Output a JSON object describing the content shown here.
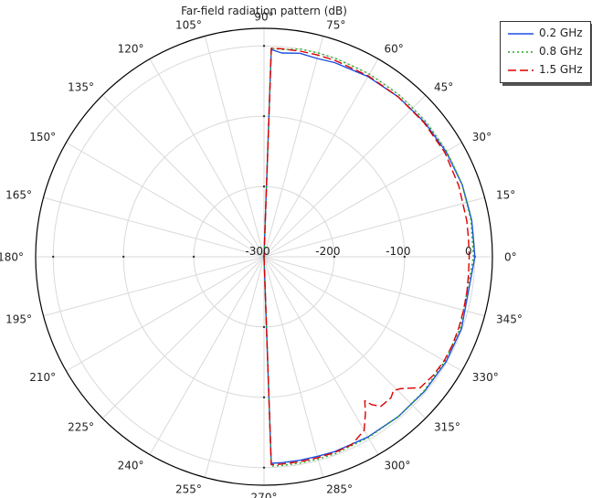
{
  "chart_data": {
    "type": "polar-line",
    "title": "Far-field radiation pattern (dB)",
    "angle_unit": "deg",
    "angle_ticks": [
      "0°",
      "15°",
      "30°",
      "45°",
      "60°",
      "75°",
      "90°",
      "105°",
      "120°",
      "135°",
      "150°",
      "165°",
      "180°",
      "195°",
      "210°",
      "225°",
      "240°",
      "255°",
      "270°",
      "285°",
      "300°",
      "315°",
      "330°",
      "345°"
    ],
    "radial_range": [
      -300,
      25
    ],
    "radial_ticks": [
      "-300",
      "-200",
      "-100",
      "0"
    ],
    "radial_tick_values": [
      -300,
      -200,
      -100,
      0
    ],
    "grid": true,
    "legend_position": "top-right",
    "series": [
      {
        "name": "0.2 GHz",
        "color": "#1f4fe0",
        "dash": "solid",
        "theta": [
          90,
          88,
          85,
          80,
          75,
          70,
          60,
          50,
          40,
          30,
          20,
          10,
          0,
          340,
          330,
          320,
          310,
          300,
          290,
          285,
          280,
          275,
          272,
          270
        ],
        "r": [
          -300,
          -5,
          -9,
          -6,
          -8,
          -6,
          -4,
          -3,
          -2,
          -1,
          0,
          0,
          0,
          -1,
          -1,
          -2,
          -3,
          -4,
          -5,
          -6,
          -6,
          -6,
          -6,
          -300
        ]
      },
      {
        "name": "0.8 GHz",
        "color": "#22aa22",
        "dash": "dotted",
        "theta": [
          90,
          88,
          85,
          80,
          75,
          70,
          60,
          50,
          40,
          30,
          20,
          10,
          0,
          340,
          330,
          320,
          310,
          300,
          290,
          285,
          280,
          275,
          272,
          270
        ],
        "r": [
          -300,
          -3,
          -4,
          0,
          0,
          0,
          0,
          0,
          0,
          0,
          0,
          -1,
          -2,
          -3,
          -3,
          -3,
          -3,
          -3,
          -2,
          -2,
          -2,
          -2,
          -2,
          -300
        ]
      },
      {
        "name": "1.5 GHz",
        "color": "#dd0000",
        "dash": "dashed",
        "theta": [
          90,
          88,
          85,
          80,
          75,
          70,
          60,
          50,
          40,
          30,
          20,
          10,
          5,
          0,
          355,
          350,
          345,
          340,
          335,
          330,
          325,
          320,
          316,
          314,
          312,
          308,
          306,
          305,
          303,
          300,
          295,
          290,
          285,
          280,
          275,
          272,
          270
        ],
        "r": [
          -300,
          -3,
          -3,
          -3,
          -3,
          -3,
          -3,
          -3,
          -3,
          -3,
          -5,
          -7,
          -8,
          -8,
          -8,
          -7,
          -6,
          -5,
          -4,
          -4,
          -6,
          -10,
          -30,
          -35,
          -30,
          -30,
          -40,
          -50,
          -35,
          -15,
          -5,
          -4,
          -4,
          -4,
          -4,
          -4,
          -300
        ]
      }
    ]
  }
}
